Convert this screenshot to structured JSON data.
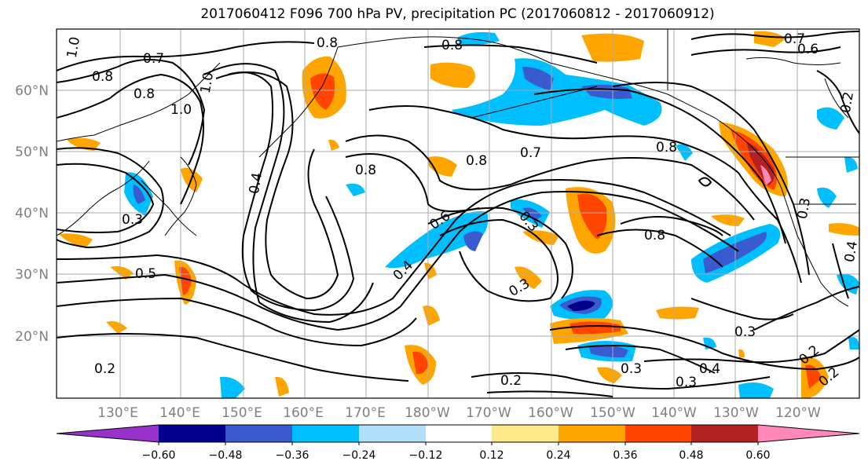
{
  "title": "2017060412 F096 700 hPa PV, precipitation PC (2017060812 - 2017060912)",
  "lat_labels": [
    "60°N",
    "50°N",
    "40°N",
    "30°N",
    "20°N"
  ],
  "lon_labels": [
    "130°E",
    "140°E",
    "150°E",
    "160°E",
    "170°E",
    "180°W",
    "170°W",
    "160°W",
    "150°W",
    "140°W",
    "130°W",
    "120°W"
  ],
  "colorbar": {
    "ticks": [
      "−0.60",
      "−0.48",
      "−0.36",
      "−0.24",
      "−0.12",
      "0.12",
      "0.24",
      "0.36",
      "0.48",
      "0.60"
    ],
    "colors": [
      "#9932cc",
      "#00008b",
      "#3a5bd0",
      "#00bfff",
      "#b0e0fa",
      "#ffffff",
      "#ffe98a",
      "#ffa500",
      "#ff4500",
      "#b22222",
      "#ff88b8"
    ]
  },
  "contour_labels": [
    "1.0",
    "0.7",
    "0.8",
    "1.0",
    "0.8",
    "1.0",
    "0.8",
    "0.7",
    "0.6",
    "0.8",
    "0.8",
    "0.7",
    "0.8",
    "0.4",
    "0.8",
    "0.3",
    "0.5",
    "0.4",
    "0.6",
    "0.3",
    "0.8",
    "0.3",
    "0.4",
    "0.3",
    "0.2",
    "0.2",
    "0.3",
    "0.4",
    "0.2",
    "0.2",
    "0.3",
    "0.2",
    "0.3"
  ],
  "colors": {
    "frame": "#000000",
    "grid": "#aaaaaa",
    "contour": "#000000"
  }
}
